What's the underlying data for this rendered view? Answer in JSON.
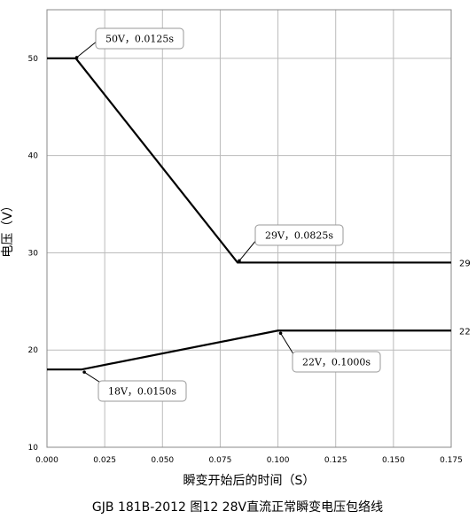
{
  "caption": "GJB 181B-2012 图12  28V直流正常瞬变电压包络线",
  "chart_data": {
    "type": "line",
    "title": "",
    "xlabel": "瞬变开始后的时间（S）",
    "ylabel": "电压（V）",
    "xlim": [
      0.0,
      0.175
    ],
    "ylim": [
      10,
      55
    ],
    "x_ticks": [
      "0.000",
      "0.025",
      "0.050",
      "0.075",
      "0.100",
      "0.125",
      "0.150",
      "0.175"
    ],
    "y_ticks": [
      "10",
      "20",
      "30",
      "40",
      "50"
    ],
    "grid": true,
    "series": [
      {
        "x": [
          0.0,
          0.0125,
          0.0825,
          0.175
        ],
        "y": [
          50,
          50,
          29,
          29
        ],
        "end_label": "29"
      },
      {
        "x": [
          0.0,
          0.015,
          0.1,
          0.175
        ],
        "y": [
          18,
          18,
          22,
          22
        ],
        "end_label": "22"
      }
    ],
    "annotations": [
      {
        "text": "50V，0.0125s",
        "x": 0.0125,
        "y": 50
      },
      {
        "text": "29V，0.0825s",
        "x": 0.0825,
        "y": 29
      },
      {
        "text": "22V，0.1000s",
        "x": 0.1,
        "y": 22
      },
      {
        "text": "18V，0.0150s",
        "x": 0.015,
        "y": 18
      }
    ]
  }
}
